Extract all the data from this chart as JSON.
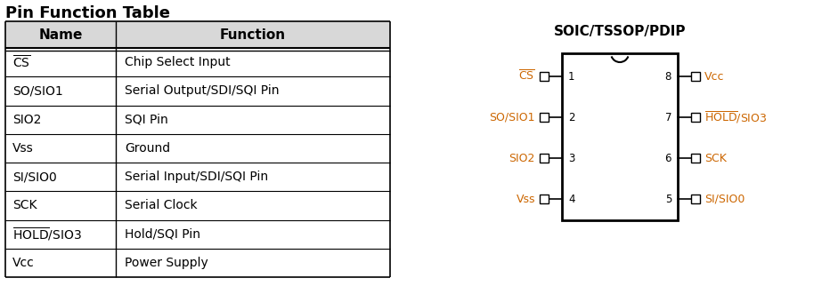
{
  "title": "Pin Function Table",
  "table_headers": [
    "Name",
    "Function"
  ],
  "table_rows": [
    [
      "CS_bar",
      "Chip Select Input"
    ],
    [
      "SO/SIO1",
      "Serial Output/SDI/SQI Pin"
    ],
    [
      "SIO2",
      "SQI Pin"
    ],
    [
      "Vss",
      "Ground"
    ],
    [
      "SI/SIO0",
      "Serial Input/SDI/SQI Pin"
    ],
    [
      "SCK",
      "Serial Clock"
    ],
    [
      "HOLD_bar/SIO3",
      "Hold/SQI Pin"
    ],
    [
      "Vcc",
      "Power Supply"
    ]
  ],
  "ic_title": "SOIC/TSSOP/PDIP",
  "left_pins": [
    {
      "num": "1",
      "name": "CS_bar"
    },
    {
      "num": "2",
      "name": "SO/SIO1"
    },
    {
      "num": "3",
      "name": "SIO2"
    },
    {
      "num": "4",
      "name": "Vss"
    }
  ],
  "right_pins": [
    {
      "num": "8",
      "name": "Vcc"
    },
    {
      "num": "7",
      "name": "HOLD_bar/SIO3"
    },
    {
      "num": "6",
      "name": "SCK"
    },
    {
      "num": "5",
      "name": "SI/SIO0"
    }
  ],
  "text_color": "#000000",
  "orange_color": "#CC6600",
  "header_bg": "#D8D8D8",
  "table_line_color": "#000000",
  "bg_color": "#FFFFFF",
  "title_fontsize": 13,
  "header_fontsize": 11,
  "cell_fontsize": 10,
  "ic_title_fontsize": 11,
  "ic_pin_fontsize": 9,
  "ic_num_fontsize": 8.5
}
